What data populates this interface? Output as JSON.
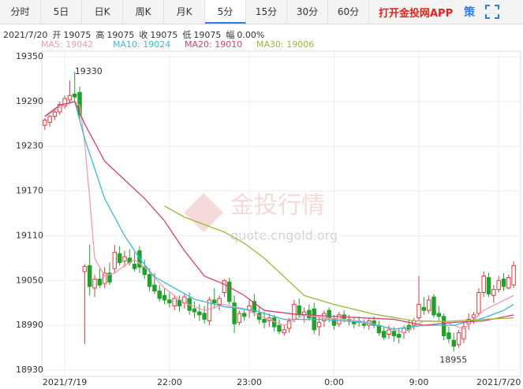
{
  "tabs": [
    "分时",
    "5日",
    "日K",
    "周K",
    "月K",
    "5分",
    "15分",
    "30分",
    "60分"
  ],
  "active_tab": 5,
  "app_link": "打开金投网APP",
  "strategy_icon": "策",
  "info": {
    "date": "2021/7/20",
    "items": [
      {
        "label": "开",
        "value": 19075
      },
      {
        "label": "高",
        "value": 19075
      },
      {
        "label": "收",
        "value": 19075
      },
      {
        "label": "低",
        "value": 19075
      },
      {
        "label": "幅",
        "value": 0,
        "value_label": "0.00%"
      }
    ]
  },
  "watermark": {
    "title": "金投行情",
    "url": "quote.cngold.org"
  },
  "chart_data": {
    "type": "candlestick",
    "up_color": "#e03b3b",
    "down_color": "#1fa12a",
    "ylim": [
      18930,
      19350
    ],
    "yticks": [
      18930,
      18990,
      19050,
      19110,
      19170,
      19230,
      19290,
      19350
    ],
    "xlim": [
      -0.6,
      95.4
    ],
    "xticks": [
      {
        "value": 4,
        "label": "2021/7/19"
      },
      {
        "value": 25,
        "label": "22:00"
      },
      {
        "value": 41,
        "label": "23:00"
      },
      {
        "value": 58,
        "label": "0:00"
      },
      {
        "value": 75,
        "label": "9:00"
      },
      {
        "value": 91,
        "label": "2021/7/20"
      }
    ],
    "grid": true,
    "ohlc": [
      [
        19258,
        19268,
        19252,
        19265
      ],
      [
        19262,
        19272,
        19256,
        19270
      ],
      [
        19270,
        19280,
        19265,
        19276
      ],
      [
        19276,
        19290,
        19272,
        19286
      ],
      [
        19284,
        19298,
        19280,
        19294
      ],
      [
        19292,
        19318,
        19288,
        19298
      ],
      [
        19300,
        19330,
        19290,
        19296
      ],
      [
        19302,
        19310,
        19265,
        19272
      ],
      [
        19062,
        19072,
        18965,
        19069
      ],
      [
        19070,
        19098,
        19030,
        19042
      ],
      [
        19040,
        19058,
        19028,
        19052
      ],
      [
        19052,
        19066,
        19040,
        19044
      ],
      [
        19046,
        19068,
        19040,
        19060
      ],
      [
        19060,
        19074,
        19044,
        19048
      ],
      [
        19066,
        19098,
        19060,
        19088
      ],
      [
        19086,
        19096,
        19070,
        19074
      ],
      [
        19076,
        19090,
        19068,
        19082
      ],
      [
        19080,
        19092,
        19070,
        19074
      ],
      [
        19072,
        19088,
        19062,
        19066
      ],
      [
        19090,
        19096,
        19060,
        19068
      ],
      [
        19068,
        19078,
        19052,
        19058
      ],
      [
        19058,
        19066,
        19036,
        19042
      ],
      [
        19044,
        19060,
        19032,
        19036
      ],
      [
        19036,
        19044,
        19022,
        19026
      ],
      [
        19030,
        19040,
        19018,
        19024
      ],
      [
        19024,
        19034,
        19014,
        19020
      ],
      [
        19016,
        19030,
        19010,
        19026
      ],
      [
        19024,
        19030,
        19008,
        19016
      ],
      [
        19020,
        19032,
        19012,
        19028
      ],
      [
        19026,
        19034,
        19004,
        19010
      ],
      [
        19012,
        19022,
        19000,
        19008
      ],
      [
        19008,
        19018,
        18996,
        19004
      ],
      [
        19006,
        19016,
        18992,
        18998
      ],
      [
        18996,
        19028,
        18990,
        19024
      ],
      [
        19024,
        19040,
        19012,
        19020
      ],
      [
        19018,
        19030,
        19010,
        19026
      ],
      [
        19034,
        19052,
        19028,
        19050
      ],
      [
        19048,
        19054,
        19018,
        19022
      ],
      [
        19020,
        19030,
        18980,
        18992
      ],
      [
        18994,
        19010,
        18990,
        19006
      ],
      [
        19006,
        19012,
        18996,
        19002
      ],
      [
        19010,
        19024,
        19000,
        19016
      ],
      [
        19022,
        19032,
        19002,
        19008
      ],
      [
        19006,
        19014,
        18992,
        18998
      ],
      [
        18998,
        19008,
        18986,
        18994
      ],
      [
        18996,
        19006,
        18988,
        19000
      ],
      [
        19000,
        19004,
        18982,
        18988
      ],
      [
        18990,
        18998,
        18978,
        18982
      ],
      [
        18980,
        18990,
        18976,
        18984
      ],
      [
        18986,
        19000,
        18980,
        18996
      ],
      [
        18998,
        19024,
        18994,
        19018
      ],
      [
        19016,
        19026,
        19000,
        19004
      ],
      [
        19004,
        19014,
        18994,
        19008
      ],
      [
        19010,
        19018,
        18996,
        19000
      ],
      [
        19012,
        19020,
        18978,
        18984
      ],
      [
        18988,
        19000,
        18976,
        18994
      ],
      [
        18996,
        19010,
        18988,
        19006
      ],
      [
        19010,
        19014,
        18994,
        19000
      ],
      [
        18998,
        19004,
        18984,
        18990
      ],
      [
        18992,
        19008,
        18988,
        19004
      ],
      [
        19004,
        19010,
        18994,
        18998
      ],
      [
        18998,
        19004,
        18990,
        18996
      ],
      [
        18994,
        19000,
        18986,
        18992
      ],
      [
        18996,
        19002,
        18988,
        18994
      ],
      [
        18992,
        18998,
        18986,
        18990
      ],
      [
        18990,
        19000,
        18984,
        18996
      ],
      [
        18996,
        19002,
        18986,
        18990
      ],
      [
        18990,
        18996,
        18976,
        18980
      ],
      [
        18982,
        18988,
        18970,
        18974
      ],
      [
        18978,
        18990,
        18972,
        18984
      ],
      [
        18982,
        18988,
        18968,
        18976
      ],
      [
        18978,
        18986,
        18966,
        18974
      ],
      [
        18980,
        18990,
        18972,
        18986
      ],
      [
        18990,
        18998,
        18980,
        18984
      ],
      [
        18990,
        19000,
        18984,
        18996
      ],
      [
        19000,
        19056,
        18996,
        19018
      ],
      [
        19014,
        19028,
        19004,
        19010
      ],
      [
        19010,
        19030,
        19006,
        19024
      ],
      [
        19028,
        19032,
        19000,
        19004
      ],
      [
        19006,
        19016,
        18996,
        19002
      ],
      [
        19002,
        19006,
        18970,
        18976
      ],
      [
        18980,
        18988,
        18966,
        18972
      ],
      [
        18970,
        18980,
        18955,
        18962
      ],
      [
        18964,
        18984,
        18960,
        18980
      ],
      [
        18972,
        18994,
        18966,
        18988
      ],
      [
        18992,
        19006,
        18984,
        18998
      ],
      [
        19000,
        19008,
        18992,
        19004
      ],
      [
        19006,
        19040,
        19002,
        19034
      ],
      [
        19034,
        19062,
        19028,
        19056
      ],
      [
        19054,
        19060,
        19028,
        19032
      ],
      [
        19030,
        19044,
        19020,
        19038
      ],
      [
        19038,
        19056,
        19034,
        19050
      ],
      [
        19052,
        19060,
        19036,
        19042
      ],
      [
        19040,
        19058,
        19038,
        19054
      ],
      [
        19044,
        19076,
        19040,
        19070
      ]
    ],
    "series": [
      {
        "name": "MA5: 19042",
        "color": "#f19ab6",
        "x": [
          0,
          3,
          6,
          7,
          8,
          9,
          10,
          12,
          14,
          16,
          18,
          20,
          24,
          28,
          32,
          36,
          40,
          44,
          48,
          52,
          56,
          60,
          64,
          68,
          72,
          76,
          80,
          84,
          88,
          94
        ],
        "values": [
          19270,
          19282,
          19290,
          19285,
          19235,
          19160,
          19080,
          19056,
          19060,
          19070,
          19078,
          19068,
          19040,
          19020,
          19010,
          19018,
          19012,
          19000,
          18990,
          19004,
          19000,
          18998,
          18995,
          18988,
          18980,
          18996,
          18995,
          18985,
          19010,
          19030
        ]
      },
      {
        "name": "MA10: 19024",
        "color": "#39bcd6",
        "x": [
          0,
          3,
          6,
          8,
          12,
          16,
          19,
          22,
          26,
          30,
          36,
          42,
          48,
          56,
          64,
          70,
          76,
          82,
          88,
          92,
          94
        ],
        "values": [
          19270,
          19285,
          19290,
          19240,
          19160,
          19110,
          19080,
          19055,
          19040,
          19025,
          19015,
          19010,
          18998,
          18998,
          18994,
          18985,
          18990,
          18990,
          19000,
          19010,
          19018
        ]
      },
      {
        "name": "MA20: 19010",
        "color": "#d6406e",
        "x": [
          0,
          3,
          6,
          8,
          12,
          16,
          20,
          24,
          28,
          32,
          36,
          40,
          44,
          50,
          58,
          64,
          70,
          76,
          82,
          88,
          94
        ],
        "values": [
          19270,
          19285,
          19290,
          19260,
          19210,
          19185,
          19160,
          19130,
          19090,
          19056,
          19045,
          19030,
          19010,
          19005,
          19002,
          19000,
          18998,
          18990,
          18994,
          18996,
          19004
        ]
      },
      {
        "name": "MA30: 19006",
        "color": "#9ab934",
        "x": [
          24,
          28,
          36,
          40,
          44,
          48,
          52,
          58,
          66,
          74,
          80,
          88,
          94
        ],
        "values": [
          19150,
          19135,
          19115,
          19100,
          19080,
          19055,
          19030,
          19018,
          19005,
          18996,
          18995,
          18998,
          19000
        ]
      }
    ],
    "annotations": [
      {
        "text": "19330",
        "x": 6,
        "y": 19330
      },
      {
        "text": "18955",
        "x": 82,
        "y": 18955
      }
    ]
  }
}
